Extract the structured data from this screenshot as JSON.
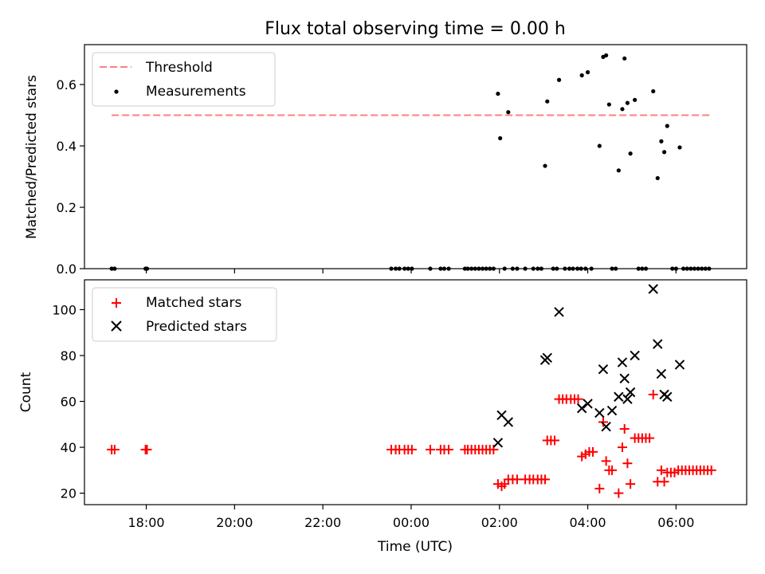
{
  "chart_data": [
    {
      "type": "scatter",
      "title": "Flux total observing time = 0.00 h",
      "xlabel": "",
      "ylabel": "Matched/Predicted stars",
      "ylim": [
        0,
        0.73
      ],
      "yticks": [
        "0.0",
        "0.2",
        "0.4",
        "0.6"
      ],
      "legend": {
        "position": "top-left",
        "entries": [
          "Threshold",
          "Measurements"
        ]
      },
      "threshold": {
        "name": "Threshold",
        "value": 0.5,
        "x_start": "17:13",
        "x_end": "06:48",
        "color": "#ff7f7f"
      },
      "series": [
        {
          "name": "Measurements",
          "color": "#000000",
          "points": [
            [
              "17:13",
              0
            ],
            [
              "17:17",
              0
            ],
            [
              "17:59",
              0
            ],
            [
              "18:01",
              0
            ],
            [
              "23:33",
              0
            ],
            [
              "23:39",
              0
            ],
            [
              "23:44",
              0
            ],
            [
              "23:51",
              0
            ],
            [
              "23:56",
              0
            ],
            [
              "00:01",
              0
            ],
            [
              "00:26",
              0
            ],
            [
              "00:40",
              0
            ],
            [
              "00:45",
              0
            ],
            [
              "00:51",
              0
            ],
            [
              "01:13",
              0
            ],
            [
              "01:17",
              0
            ],
            [
              "01:22",
              0
            ],
            [
              "01:27",
              0
            ],
            [
              "01:32",
              0
            ],
            [
              "01:37",
              0
            ],
            [
              "01:42",
              0
            ],
            [
              "01:47",
              0
            ],
            [
              "01:52",
              0
            ],
            [
              "01:58",
              0.57
            ],
            [
              "02:01",
              0.425
            ],
            [
              "02:12",
              0.51
            ],
            [
              "02:07",
              0
            ],
            [
              "02:18",
              0
            ],
            [
              "02:24",
              0
            ],
            [
              "02:35",
              0
            ],
            [
              "02:46",
              0
            ],
            [
              "02:52",
              0
            ],
            [
              "02:57",
              0
            ],
            [
              "03:02",
              0.335
            ],
            [
              "03:05",
              0.545
            ],
            [
              "03:13",
              0
            ],
            [
              "03:18",
              0
            ],
            [
              "03:21",
              0.615
            ],
            [
              "03:29",
              0
            ],
            [
              "03:35",
              0
            ],
            [
              "03:40",
              0
            ],
            [
              "03:46",
              0
            ],
            [
              "03:51",
              0
            ],
            [
              "03:52",
              0.63
            ],
            [
              "03:57",
              0
            ],
            [
              "04:00",
              0.64
            ],
            [
              "04:05",
              0
            ],
            [
              "04:16",
              0.4
            ],
            [
              "04:21",
              0.69
            ],
            [
              "04:25",
              0.695
            ],
            [
              "04:29",
              0.535
            ],
            [
              "04:33",
              0
            ],
            [
              "04:38",
              0
            ],
            [
              "04:42",
              0.32
            ],
            [
              "04:47",
              0.52
            ],
            [
              "04:50",
              0.685
            ],
            [
              "04:54",
              0.54
            ],
            [
              "04:58",
              0.375
            ],
            [
              "05:04",
              0.55
            ],
            [
              "05:09",
              0
            ],
            [
              "05:14",
              0
            ],
            [
              "05:19",
              0
            ],
            [
              "05:29",
              0.578
            ],
            [
              "05:35",
              0.295
            ],
            [
              "05:40",
              0.415
            ],
            [
              "05:44",
              0.38
            ],
            [
              "05:48",
              0.465
            ],
            [
              "05:55",
              0
            ],
            [
              "06:00",
              0
            ],
            [
              "06:05",
              0.395
            ],
            [
              "06:10",
              0
            ],
            [
              "06:15",
              0
            ],
            [
              "06:20",
              0
            ],
            [
              "06:25",
              0
            ],
            [
              "06:30",
              0
            ],
            [
              "06:35",
              0
            ],
            [
              "06:40",
              0
            ],
            [
              "06:45",
              0
            ]
          ]
        }
      ]
    },
    {
      "type": "scatter",
      "xlabel": "Time (UTC)",
      "ylabel": "Count",
      "ylim": [
        15,
        113
      ],
      "yticks": [
        "20",
        "40",
        "60",
        "80",
        "100"
      ],
      "xticks": [
        "18:00",
        "20:00",
        "22:00",
        "00:00",
        "02:00",
        "04:00",
        "06:00"
      ],
      "xlim_hours_from_midnight": [
        -7.4,
        7.6
      ],
      "legend": {
        "position": "top-left",
        "entries": [
          "Matched stars",
          "Predicted stars"
        ]
      },
      "series": [
        {
          "name": "Matched stars",
          "marker": "plus",
          "color": "#ff0000",
          "points": [
            [
              "17:13",
              39
            ],
            [
              "17:17",
              39
            ],
            [
              "17:59",
              39
            ],
            [
              "18:01",
              39
            ],
            [
              "23:33",
              39
            ],
            [
              "23:39",
              39
            ],
            [
              "23:44",
              39
            ],
            [
              "23:51",
              39
            ],
            [
              "23:56",
              39
            ],
            [
              "00:01",
              39
            ],
            [
              "00:26",
              39
            ],
            [
              "00:40",
              39
            ],
            [
              "00:45",
              39
            ],
            [
              "00:51",
              39
            ],
            [
              "01:13",
              39
            ],
            [
              "01:17",
              39
            ],
            [
              "01:22",
              39
            ],
            [
              "01:27",
              39
            ],
            [
              "01:32",
              39
            ],
            [
              "01:37",
              39
            ],
            [
              "01:42",
              39
            ],
            [
              "01:47",
              39
            ],
            [
              "01:52",
              39
            ],
            [
              "01:58",
              24
            ],
            [
              "02:03",
              23
            ],
            [
              "02:07",
              24
            ],
            [
              "02:12",
              26
            ],
            [
              "02:18",
              26
            ],
            [
              "02:24",
              26
            ],
            [
              "02:35",
              26
            ],
            [
              "02:41",
              26
            ],
            [
              "02:46",
              26
            ],
            [
              "02:52",
              26
            ],
            [
              "02:57",
              26
            ],
            [
              "03:02",
              26
            ],
            [
              "03:05",
              43
            ],
            [
              "03:10",
              43
            ],
            [
              "03:15",
              43
            ],
            [
              "03:21",
              61
            ],
            [
              "03:26",
              61
            ],
            [
              "03:31",
              61
            ],
            [
              "03:37",
              61
            ],
            [
              "03:42",
              61
            ],
            [
              "03:47",
              61
            ],
            [
              "03:52",
              36
            ],
            [
              "03:57",
              37
            ],
            [
              "04:02",
              38
            ],
            [
              "04:07",
              38
            ],
            [
              "04:16",
              22
            ],
            [
              "04:21",
              51
            ],
            [
              "04:25",
              34
            ],
            [
              "04:29",
              30
            ],
            [
              "04:33",
              30
            ],
            [
              "04:42",
              20
            ],
            [
              "04:47",
              40
            ],
            [
              "04:50",
              48
            ],
            [
              "04:54",
              33
            ],
            [
              "04:58",
              24
            ],
            [
              "05:04",
              44
            ],
            [
              "05:09",
              44
            ],
            [
              "05:14",
              44
            ],
            [
              "05:19",
              44
            ],
            [
              "05:24",
              44
            ],
            [
              "05:29",
              63
            ],
            [
              "05:35",
              25
            ],
            [
              "05:40",
              30
            ],
            [
              "05:44",
              25
            ],
            [
              "05:48",
              29
            ],
            [
              "05:53",
              29
            ],
            [
              "05:58",
              29
            ],
            [
              "06:03",
              30
            ],
            [
              "06:08",
              30
            ],
            [
              "06:13",
              30
            ],
            [
              "06:18",
              30
            ],
            [
              "06:23",
              30
            ],
            [
              "06:28",
              30
            ],
            [
              "06:33",
              30
            ],
            [
              "06:38",
              30
            ],
            [
              "06:43",
              30
            ],
            [
              "06:48",
              30
            ]
          ]
        },
        {
          "name": "Predicted stars",
          "marker": "x",
          "color": "#000000",
          "points": [
            [
              "01:58",
              42
            ],
            [
              "02:03",
              54
            ],
            [
              "02:12",
              51
            ],
            [
              "03:02",
              78
            ],
            [
              "03:05",
              79
            ],
            [
              "03:21",
              99
            ],
            [
              "03:52",
              57
            ],
            [
              "04:00",
              59
            ],
            [
              "04:16",
              55
            ],
            [
              "04:21",
              74
            ],
            [
              "04:25",
              49
            ],
            [
              "04:33",
              56
            ],
            [
              "04:42",
              62
            ],
            [
              "04:47",
              77
            ],
            [
              "04:50",
              70
            ],
            [
              "04:54",
              61
            ],
            [
              "04:58",
              64
            ],
            [
              "05:04",
              80
            ],
            [
              "05:29",
              109
            ],
            [
              "05:35",
              85
            ],
            [
              "05:40",
              72
            ],
            [
              "05:44",
              63
            ],
            [
              "05:48",
              62
            ],
            [
              "06:05",
              76
            ]
          ]
        }
      ]
    }
  ]
}
